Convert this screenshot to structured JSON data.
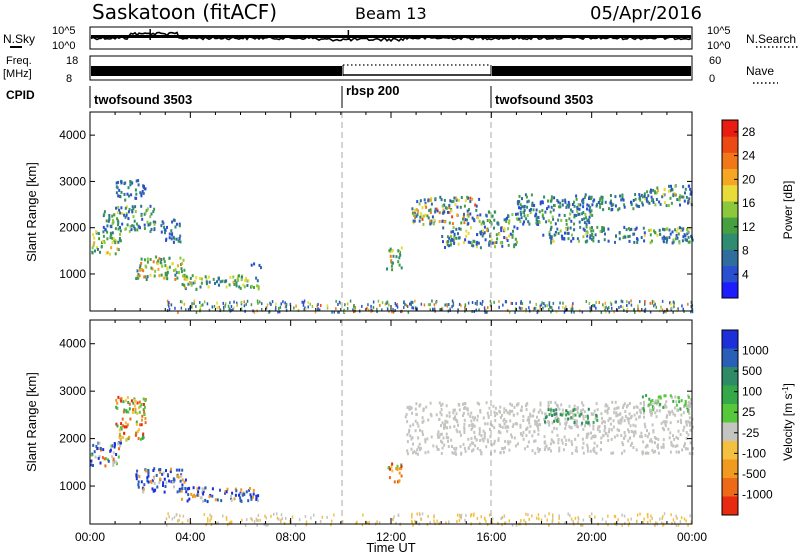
{
  "header": {
    "station": "Saskatoon (fitACF)",
    "beam": "Beam 13",
    "date": "05/Apr/2016"
  },
  "top_panels": {
    "nsky": {
      "label": "N.Sky",
      "ticks": [
        "10^5",
        "10^0"
      ]
    },
    "nsearch": {
      "label": "N.Search",
      "ticks": [
        "10^5",
        "10^0"
      ]
    },
    "freq": {
      "label_lines": [
        "Freq.",
        "[MHz]"
      ],
      "ticks": [
        "18",
        "8"
      ]
    },
    "nave": {
      "label": "Nave",
      "ticks": [
        "60",
        "0"
      ]
    },
    "cpid": {
      "label": "CPID"
    }
  },
  "chart_data": [
    {
      "type": "line",
      "name": "sky_noise_and_search_noise",
      "x_range_hours": [
        0,
        24
      ],
      "y_scale": "log",
      "ylim": [
        1,
        100000
      ],
      "sky_noise_level": "near 10^2 throughout, spike near 02:20 and 10:15",
      "note": "thin black trace with small dotted search-noise overlay"
    },
    {
      "type": "line",
      "name": "frequency_and_nave",
      "freq_ylim": [
        8,
        18
      ],
      "nave_ylim": [
        0,
        60
      ],
      "freq_mhz": 10.9,
      "rbsp_interval_hours": [
        10,
        16
      ],
      "rbsp_note": "dotted Nave trace at top, solid bar elsewhere"
    },
    {
      "type": "table",
      "name": "cpid",
      "segments": [
        {
          "label": "twofsound 3503",
          "start": 0,
          "end": 10
        },
        {
          "label": "rbsp 200",
          "start": 10,
          "end": 16
        },
        {
          "label": "twofsound 3503",
          "start": 16,
          "end": 24
        }
      ]
    },
    {
      "type": "heatmap",
      "name": "power",
      "ylabel": "Slant Range [km]",
      "xlabel": "",
      "ylim": [
        200,
        4500
      ],
      "yticks": [
        1000,
        2000,
        3000,
        4000
      ],
      "xlim": [
        0,
        24
      ],
      "colorbar": {
        "label": "Power [dB]",
        "ticks": [
          4,
          8,
          12,
          16,
          20,
          24,
          28
        ],
        "range": [
          0,
          30
        ],
        "colors": [
          "#1c1cff",
          "#2a4fd0",
          "#2e6d9e",
          "#2f8c70",
          "#46a040",
          "#8dc83c",
          "#e8dc3a",
          "#f5a623",
          "#f07818",
          "#ec4a14",
          "#e81c10"
        ]
      },
      "regions": [
        {
          "t0": 0.0,
          "t1": 1.2,
          "r0": 1450,
          "r1": 1950,
          "pmin": 8,
          "pmax": 22
        },
        {
          "t0": 0.5,
          "t1": 2.6,
          "r0": 1950,
          "r1": 2500,
          "pmin": 4,
          "pmax": 18
        },
        {
          "t0": 1.0,
          "t1": 2.2,
          "r0": 2600,
          "r1": 3050,
          "pmin": 4,
          "pmax": 12
        },
        {
          "t0": 1.8,
          "t1": 3.8,
          "r0": 900,
          "r1": 1400,
          "pmin": 8,
          "pmax": 24
        },
        {
          "t0": 2.8,
          "t1": 3.6,
          "r0": 1700,
          "r1": 2200,
          "pmin": 4,
          "pmax": 12
        },
        {
          "t0": 3.6,
          "t1": 6.7,
          "r0": 700,
          "r1": 1000,
          "pmin": 6,
          "pmax": 20
        },
        {
          "t0": 6.3,
          "t1": 6.9,
          "r0": 1150,
          "r1": 1250,
          "pmin": 4,
          "pmax": 10
        },
        {
          "t0": 11.8,
          "t1": 12.4,
          "r0": 1100,
          "r1": 1600,
          "pmin": 8,
          "pmax": 24
        },
        {
          "t0": 12.8,
          "t1": 15.5,
          "r0": 2100,
          "r1": 2700,
          "pmin": 4,
          "pmax": 26
        },
        {
          "t0": 14.0,
          "t1": 17.0,
          "r0": 1600,
          "r1": 2050,
          "pmin": 4,
          "pmax": 20
        },
        {
          "t0": 15.5,
          "t1": 20.0,
          "r0": 2100,
          "r1": 2400,
          "pmin": 4,
          "pmax": 16
        },
        {
          "t0": 17.0,
          "t1": 22.0,
          "r0": 2400,
          "r1": 2750,
          "pmin": 4,
          "pmax": 14
        },
        {
          "t0": 18.0,
          "t1": 24.0,
          "r0": 1700,
          "r1": 2050,
          "pmin": 4,
          "pmax": 18
        },
        {
          "t0": 22.0,
          "t1": 24.0,
          "r0": 2500,
          "r1": 2950,
          "pmin": 4,
          "pmax": 20
        }
      ],
      "ground_scatter_band": {
        "t0": 3.0,
        "t1": 24.0,
        "r0": 200,
        "r1": 450
      }
    },
    {
      "type": "heatmap",
      "name": "velocity",
      "ylabel": "Slant Range [km]",
      "xlabel": "Time UT",
      "ylim": [
        200,
        4500
      ],
      "yticks": [
        1000,
        2000,
        3000,
        4000
      ],
      "xlim": [
        0,
        24
      ],
      "xtick_labels": [
        "00:00",
        "04:00",
        "08:00",
        "12:00",
        "16:00",
        "20:00",
        "00:00"
      ],
      "colorbar": {
        "label": "Velocity [m s",
        "ticks": [
          "1000",
          "500",
          "100",
          "25",
          "-25",
          "-100",
          "-500",
          "-1000"
        ],
        "colors": [
          "#1c2fd8",
          "#2a5fb8",
          "#2f8a66",
          "#35a84a",
          "#56c83a",
          "#c4c4c0",
          "#f4c040",
          "#f09a20",
          "#ee6a18",
          "#e82a10"
        ]
      },
      "regions": [
        {
          "t0": 0.0,
          "t1": 1.2,
          "r0": 1450,
          "r1": 1950,
          "vclass": "mixed"
        },
        {
          "t0": 1.0,
          "t1": 2.2,
          "r0": 2000,
          "r1": 2900,
          "vclass": "towards"
        },
        {
          "t0": 1.8,
          "t1": 3.8,
          "r0": 900,
          "r1": 1400,
          "vclass": "away_strong"
        },
        {
          "t0": 3.6,
          "t1": 6.7,
          "r0": 700,
          "r1": 1000,
          "vclass": "away_strong"
        },
        {
          "t0": 11.8,
          "t1": 12.4,
          "r0": 1100,
          "r1": 1500,
          "vclass": "towards"
        },
        {
          "t0": 12.5,
          "t1": 24.0,
          "r0": 1700,
          "r1": 2800,
          "vclass": "ground"
        },
        {
          "t0": 18.0,
          "t1": 20.2,
          "r0": 2350,
          "r1": 2650,
          "vclass": "away_weak"
        },
        {
          "t0": 22.0,
          "t1": 24.0,
          "r0": 2600,
          "r1": 2950,
          "vclass": "away_light"
        }
      ]
    }
  ]
}
